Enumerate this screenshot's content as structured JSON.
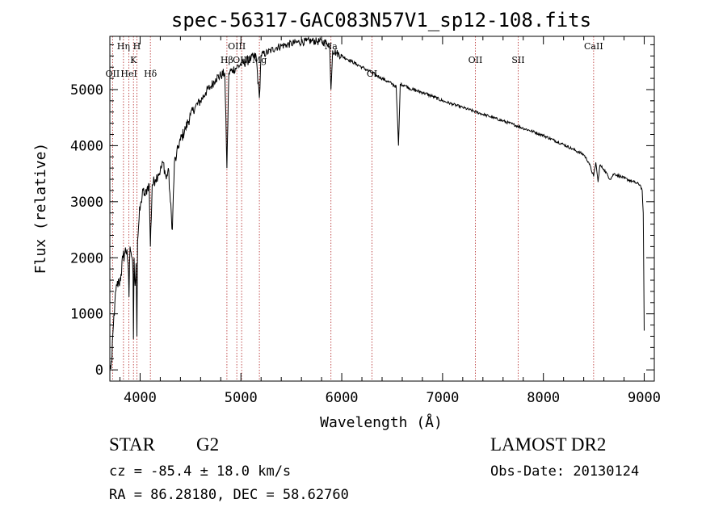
{
  "chart_data": {
    "type": "line",
    "title": "spec-56317-GAC083N57V1_sp12-108.fits",
    "xlabel": "Wavelength (Å)",
    "ylabel": "Flux (relative)",
    "xlim": [
      3700,
      9100
    ],
    "ylim": [
      -200,
      5950
    ],
    "xticks": [
      4000,
      5000,
      6000,
      7000,
      8000,
      9000
    ],
    "yticks": [
      0,
      1000,
      2000,
      3000,
      4000,
      5000
    ],
    "grid": false,
    "series": [
      {
        "color": "#000000",
        "x": [
          3700,
          3720,
          3735,
          3750,
          3770,
          3790,
          3810,
          3830,
          3850,
          3870,
          3880,
          3890,
          3900,
          3910,
          3920,
          3930,
          3934,
          3940,
          3950,
          3960,
          3968,
          3975,
          3990,
          4010,
          4030,
          4050,
          4070,
          4090,
          4102,
          4120,
          4150,
          4180,
          4200,
          4230,
          4260,
          4280,
          4300,
          4320,
          4340,
          4360,
          4380,
          4400,
          4450,
          4500,
          4550,
          4600,
          4650,
          4700,
          4750,
          4800,
          4840,
          4861,
          4880,
          4920,
          4960,
          5000,
          5050,
          5100,
          5150,
          5183,
          5200,
          5250,
          5300,
          5350,
          5400,
          5450,
          5500,
          5550,
          5600,
          5650,
          5700,
          5750,
          5800,
          5850,
          5880,
          5893,
          5910,
          5950,
          6000,
          6050,
          6100,
          6150,
          6200,
          6250,
          6300,
          6350,
          6400,
          6450,
          6500,
          6540,
          6563,
          6580,
          6620,
          6700,
          6800,
          6900,
          7000,
          7100,
          7200,
          7300,
          7400,
          7500,
          7600,
          7700,
          7800,
          7900,
          8000,
          8100,
          8200,
          8300,
          8400,
          8450,
          8498,
          8520,
          8542,
          8560,
          8600,
          8662,
          8700,
          8800,
          8900,
          8960,
          8980,
          8990,
          9000
        ],
        "y": [
          0,
          150,
          800,
          1200,
          1500,
          1550,
          1700,
          2000,
          2100,
          2150,
          1900,
          1300,
          2200,
          2100,
          2000,
          1700,
          550,
          2000,
          1500,
          1900,
          600,
          2300,
          2700,
          3000,
          3200,
          3100,
          3250,
          3300,
          2200,
          3300,
          3400,
          3500,
          3550,
          3700,
          3400,
          3600,
          3000,
          2500,
          3700,
          3800,
          4000,
          4100,
          4300,
          4550,
          4700,
          4800,
          4950,
          5050,
          5200,
          5250,
          5300,
          3600,
          5300,
          5350,
          5400,
          5450,
          5500,
          5550,
          5600,
          4850,
          5620,
          5650,
          5700,
          5750,
          5780,
          5800,
          5820,
          5840,
          5850,
          5860,
          5870,
          5860,
          5850,
          5840,
          5800,
          5000,
          5700,
          5650,
          5600,
          5550,
          5500,
          5450,
          5400,
          5350,
          5300,
          5250,
          5200,
          5150,
          5100,
          5050,
          4000,
          5100,
          5080,
          5000,
          4950,
          4880,
          4800,
          4740,
          4680,
          4620,
          4560,
          4500,
          4440,
          4380,
          4310,
          4250,
          4180,
          4100,
          4020,
          3930,
          3840,
          3700,
          3450,
          3700,
          3350,
          3650,
          3580,
          3400,
          3500,
          3420,
          3350,
          3300,
          3200,
          2800,
          700
        ]
      }
    ],
    "lines": [
      {
        "label": "Hη",
        "x": 3835,
        "row": 1
      },
      {
        "label": "OII",
        "x": 3727,
        "row": 3
      },
      {
        "label": "HeI",
        "x": 3889,
        "row": 3
      },
      {
        "label": "K",
        "x": 3934,
        "row": 2
      },
      {
        "label": "H",
        "x": 3968,
        "row": 1
      },
      {
        "label": "Hδ",
        "x": 4102,
        "row": 3
      },
      {
        "label": "Hβ",
        "x": 4861,
        "row": 2
      },
      {
        "label": "OIII",
        "x": 4959,
        "row": 1
      },
      {
        "label": "OIII",
        "x": 5007,
        "row": 2
      },
      {
        "label": "Mg",
        "x": 5183,
        "row": 2
      },
      {
        "label": "Na",
        "x": 5893,
        "row": 1
      },
      {
        "label": "OI",
        "x": 6300,
        "row": 3
      },
      {
        "label": "OII",
        "x": 7325,
        "row": 2
      },
      {
        "label": "SII",
        "x": 7750,
        "row": 2
      },
      {
        "label": "CaII",
        "x": 8498,
        "row": 1
      }
    ]
  },
  "info": {
    "object_class": "STAR",
    "subclass": "G2",
    "release": "LAMOST DR2",
    "cz": "cz = -85.4 ± 18.0 km/s",
    "obs_date": "Obs-Date: 20130124",
    "coords": "RA =  86.28180, DEC =  58.62760"
  }
}
